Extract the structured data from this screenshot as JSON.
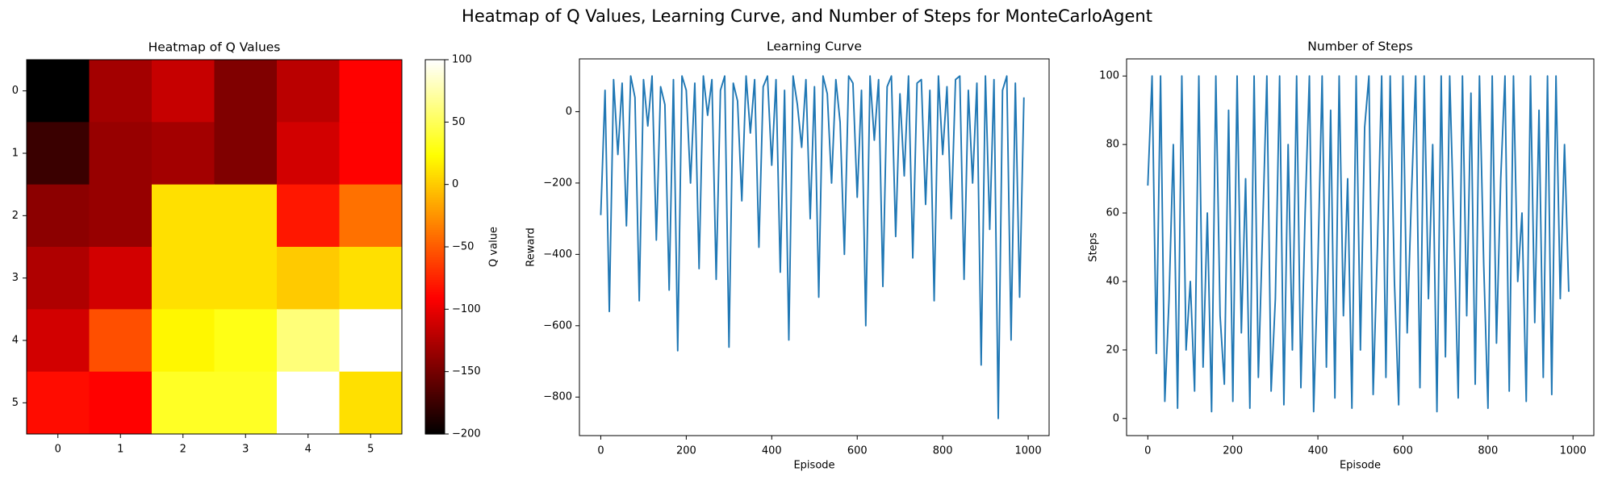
{
  "title": "Heatmap of Q Values, Learning Curve, and Number of Steps for MonteCarloAgent",
  "chart_data": [
    {
      "type": "heatmap",
      "title": "Heatmap of Q Values",
      "colormap": "hot",
      "columns": [
        "0",
        "1",
        "2",
        "3",
        "4",
        "5"
      ],
      "rows": [
        "0",
        "1",
        "2",
        "3",
        "4",
        "5"
      ],
      "values": [
        [
          -200,
          -130,
          -115,
          -145,
          -120,
          -90
        ],
        [
          -175,
          -135,
          -130,
          -145,
          -110,
          -90
        ],
        [
          -140,
          -135,
          10,
          10,
          -80,
          -40
        ],
        [
          -125,
          -110,
          10,
          10,
          0,
          10
        ],
        [
          -110,
          -55,
          20,
          30,
          60,
          100
        ],
        [
          -85,
          -90,
          35,
          35,
          100,
          10
        ]
      ],
      "colorbar": {
        "label": "Q value",
        "lim": [
          -200,
          100
        ],
        "ticks": [
          {
            "value": -200,
            "label": "−200"
          },
          {
            "value": -150,
            "label": "−150"
          },
          {
            "value": -100,
            "label": "−100"
          },
          {
            "value": -50,
            "label": "−50"
          },
          0,
          50,
          100
        ]
      }
    },
    {
      "type": "line",
      "title": "Learning Curve",
      "xlabel": "Episode",
      "ylabel": "Reward",
      "color": "#1f77b4",
      "x": [
        0,
        10,
        20,
        30,
        40,
        50,
        60,
        70,
        80,
        90,
        100,
        110,
        120,
        130,
        140,
        150,
        160,
        170,
        180,
        190,
        200,
        210,
        220,
        230,
        240,
        250,
        260,
        270,
        280,
        290,
        300,
        310,
        320,
        330,
        340,
        350,
        360,
        370,
        380,
        390,
        400,
        410,
        420,
        430,
        440,
        450,
        460,
        470,
        480,
        490,
        500,
        510,
        520,
        530,
        540,
        550,
        560,
        570,
        580,
        590,
        600,
        610,
        620,
        630,
        640,
        650,
        660,
        670,
        680,
        690,
        700,
        710,
        720,
        730,
        740,
        750,
        760,
        770,
        780,
        790,
        800,
        810,
        820,
        830,
        840,
        850,
        860,
        870,
        880,
        890,
        900,
        910,
        920,
        930,
        940,
        950,
        960,
        970,
        980,
        990
      ],
      "values": [
        -290,
        60,
        -560,
        90,
        -120,
        80,
        -320,
        100,
        40,
        -530,
        90,
        -40,
        100,
        -360,
        70,
        20,
        -500,
        90,
        -670,
        100,
        60,
        -200,
        80,
        -440,
        100,
        -10,
        90,
        -470,
        60,
        100,
        -660,
        80,
        30,
        -250,
        100,
        -60,
        90,
        -380,
        70,
        100,
        -150,
        90,
        -450,
        60,
        -640,
        100,
        20,
        -100,
        90,
        -300,
        70,
        -520,
        100,
        50,
        -200,
        90,
        -30,
        -400,
        100,
        80,
        -240,
        60,
        -600,
        100,
        -80,
        90,
        -490,
        70,
        100,
        -350,
        50,
        -180,
        100,
        -410,
        80,
        90,
        -260,
        60,
        -530,
        100,
        -120,
        70,
        -300,
        90,
        100,
        -470,
        60,
        -200,
        80,
        -710,
        100,
        -330,
        90,
        -860,
        60,
        100,
        -640,
        80,
        -520,
        40
      ],
      "xlim": [
        -49.95,
        1048.95
      ],
      "ylim": [
        -908,
        148
      ],
      "xticks": [
        0,
        200,
        400,
        600,
        800,
        1000
      ],
      "yticks": [
        {
          "value": -800,
          "label": "−800"
        },
        {
          "value": -600,
          "label": "−600"
        },
        {
          "value": -400,
          "label": "−400"
        },
        {
          "value": -200,
          "label": "−200"
        },
        0
      ]
    },
    {
      "type": "line",
      "title": "Number of Steps",
      "xlabel": "Episode",
      "ylabel": "Steps",
      "color": "#1f77b4",
      "x": [
        0,
        10,
        20,
        30,
        40,
        50,
        60,
        70,
        80,
        90,
        100,
        110,
        120,
        130,
        140,
        150,
        160,
        170,
        180,
        190,
        200,
        210,
        220,
        230,
        240,
        250,
        260,
        270,
        280,
        290,
        300,
        310,
        320,
        330,
        340,
        350,
        360,
        370,
        380,
        390,
        400,
        410,
        420,
        430,
        440,
        450,
        460,
        470,
        480,
        490,
        500,
        510,
        520,
        530,
        540,
        550,
        560,
        570,
        580,
        590,
        600,
        610,
        620,
        630,
        640,
        650,
        660,
        670,
        680,
        690,
        700,
        710,
        720,
        730,
        740,
        750,
        760,
        770,
        780,
        790,
        800,
        810,
        820,
        830,
        840,
        850,
        860,
        870,
        880,
        890,
        900,
        910,
        920,
        930,
        940,
        950,
        960,
        970,
        980,
        990
      ],
      "values": [
        68,
        100,
        19,
        100,
        5,
        35,
        80,
        3,
        100,
        20,
        40,
        8,
        100,
        15,
        60,
        2,
        100,
        30,
        10,
        90,
        5,
        100,
        25,
        70,
        3,
        100,
        12,
        55,
        100,
        8,
        35,
        100,
        4,
        80,
        20,
        100,
        9,
        60,
        100,
        2,
        45,
        100,
        15,
        90,
        6,
        100,
        30,
        70,
        3,
        100,
        20,
        85,
        100,
        7,
        50,
        100,
        12,
        100,
        40,
        4,
        100,
        25,
        65,
        100,
        9,
        100,
        35,
        80,
        2,
        100,
        18,
        100,
        55,
        6,
        100,
        30,
        95,
        10,
        100,
        45,
        3,
        100,
        22,
        70,
        100,
        8,
        100,
        40,
        60,
        5,
        100,
        28,
        90,
        12,
        100,
        7,
        100,
        35,
        80,
        37
      ],
      "xlim": [
        -49.95,
        1048.95
      ],
      "ylim": [
        -5,
        105
      ],
      "xticks": [
        0,
        200,
        400,
        600,
        800,
        1000
      ],
      "yticks": [
        0,
        20,
        40,
        60,
        80,
        100
      ]
    }
  ]
}
